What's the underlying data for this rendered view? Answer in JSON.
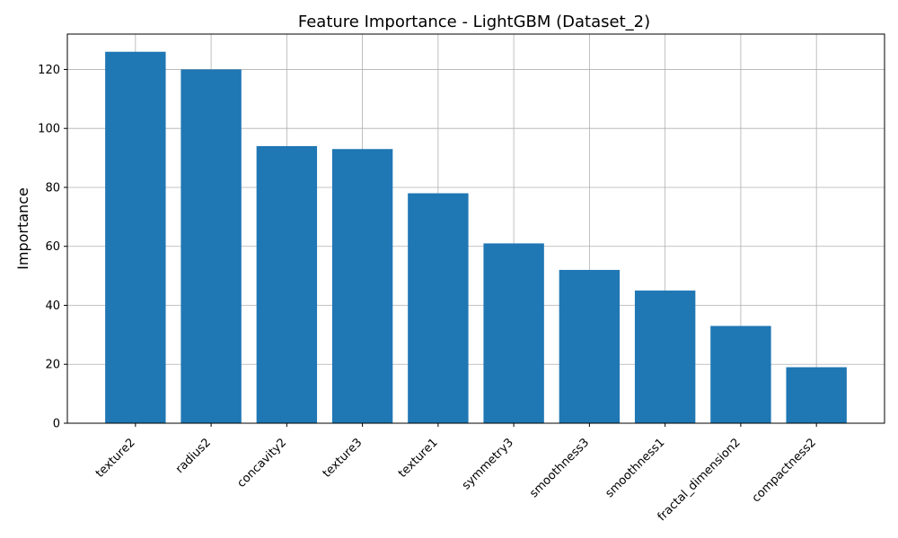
{
  "chart_data": {
    "type": "bar",
    "title": "Feature Importance - LightGBM (Dataset_2)",
    "xlabel": "",
    "ylabel": "Importance",
    "categories": [
      "texture2",
      "radius2",
      "concavity2",
      "texture3",
      "texture1",
      "symmetry3",
      "smoothness3",
      "smoothness1",
      "fractal_dimension2",
      "compactness2"
    ],
    "values": [
      126,
      120,
      94,
      93,
      78,
      61,
      52,
      45,
      33,
      19
    ],
    "ylim": [
      0,
      132
    ],
    "yticks": [
      0,
      20,
      40,
      60,
      80,
      100,
      120
    ],
    "grid": true,
    "bar_color": "#1f77b4",
    "grid_color": "#b0b0b0"
  }
}
